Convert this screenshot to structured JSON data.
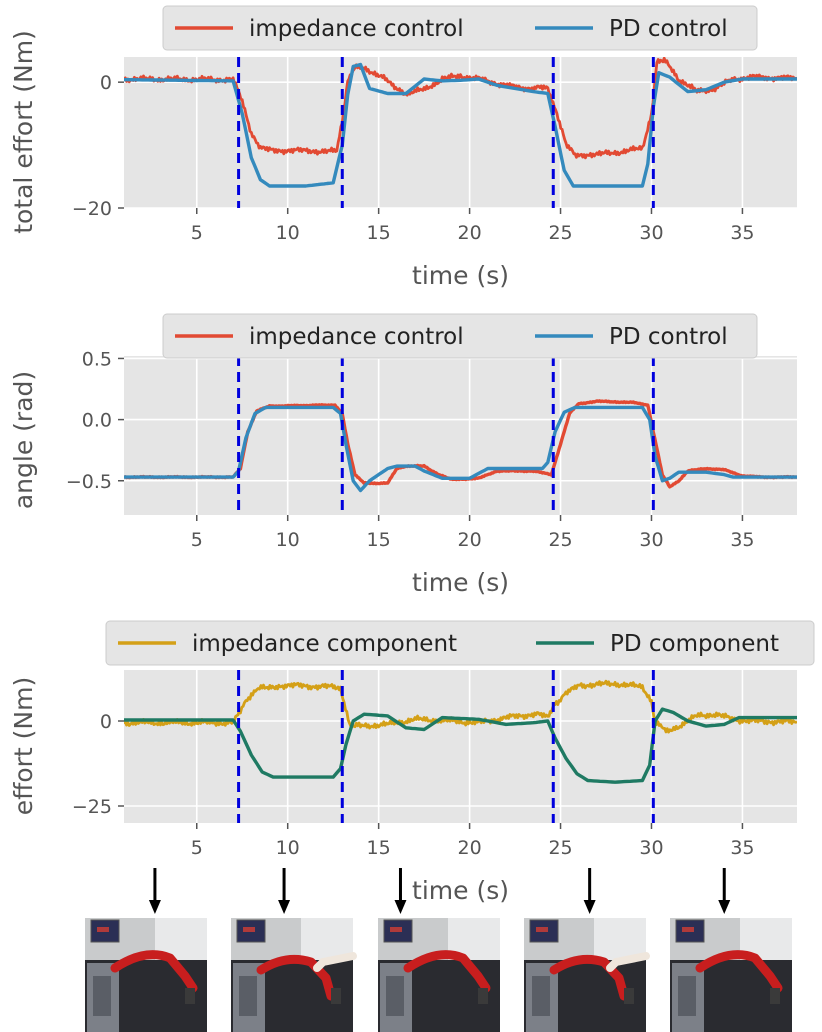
{
  "colors": {
    "impedance": "#E24A33",
    "pd": "#348ABD",
    "imp_component": "#D4A017",
    "pd_component": "#1F7A63",
    "event_line": "#0000DD",
    "plot_bg": "#E5E5E5",
    "grid": "#FFFFFF"
  },
  "events": [
    7.3,
    13.0,
    24.6,
    30.1
  ],
  "chart_data": [
    {
      "type": "line",
      "xlabel": "time (s)",
      "ylabel": "total effort (Nm)",
      "xlim": [
        1,
        38
      ],
      "ylim": [
        -20,
        4
      ],
      "xticks": [
        5,
        10,
        15,
        20,
        25,
        30,
        35
      ],
      "yticks": [
        0,
        -20
      ],
      "ytick_labels": [
        "0",
        "−20"
      ],
      "legend": "top-center",
      "series": [
        {
          "name": "impedance control",
          "color": "#E24A33",
          "points": [
            [
              1,
              0.5
            ],
            [
              7.0,
              0.4
            ],
            [
              7.5,
              -3
            ],
            [
              8.0,
              -8
            ],
            [
              8.5,
              -10.5
            ],
            [
              9,
              -10.8
            ],
            [
              12.7,
              -11
            ],
            [
              13.0,
              -6
            ],
            [
              13.3,
              0
            ],
            [
              13.7,
              2.5
            ],
            [
              14.5,
              1.8
            ],
            [
              15,
              1.2
            ],
            [
              15.8,
              -0.5
            ],
            [
              16.5,
              -1.8
            ],
            [
              17.5,
              -1.2
            ],
            [
              18.5,
              0.5
            ],
            [
              19.5,
              1
            ],
            [
              20.5,
              0.5
            ],
            [
              21.5,
              -0.2
            ],
            [
              22.5,
              -0.8
            ],
            [
              23.5,
              -1
            ],
            [
              24.3,
              -0.8
            ],
            [
              24.8,
              -5
            ],
            [
              25.3,
              -10
            ],
            [
              25.8,
              -11.5
            ],
            [
              27,
              -11.5
            ],
            [
              28.5,
              -11
            ],
            [
              29.5,
              -10.5
            ],
            [
              30.0,
              -5
            ],
            [
              30.3,
              3
            ],
            [
              30.7,
              3.5
            ],
            [
              31.5,
              0.5
            ],
            [
              32.5,
              -1.5
            ],
            [
              33.5,
              -1
            ],
            [
              34.5,
              0.5
            ],
            [
              35.5,
              0.8
            ],
            [
              38,
              0.6
            ]
          ]
        },
        {
          "name": "PD control",
          "color": "#348ABD",
          "points": [
            [
              1,
              0.4
            ],
            [
              7.0,
              0.2
            ],
            [
              7.5,
              -5
            ],
            [
              8.0,
              -12
            ],
            [
              8.5,
              -15.5
            ],
            [
              9,
              -16.5
            ],
            [
              11,
              -16.5
            ],
            [
              12.5,
              -16
            ],
            [
              13.0,
              -10
            ],
            [
              13.3,
              -2
            ],
            [
              13.6,
              2.5
            ],
            [
              14,
              2.8
            ],
            [
              14.5,
              -1
            ],
            [
              15.5,
              -1.8
            ],
            [
              16.5,
              -1.8
            ],
            [
              17.5,
              0.5
            ],
            [
              18.5,
              0.2
            ],
            [
              19.5,
              0.3
            ],
            [
              20.5,
              0.5
            ],
            [
              21.5,
              -0.5
            ],
            [
              22.5,
              -1
            ],
            [
              23.5,
              -1.5
            ],
            [
              24.3,
              -1.8
            ],
            [
              24.7,
              -7
            ],
            [
              25.2,
              -14
            ],
            [
              25.7,
              -16.5
            ],
            [
              27,
              -16.5
            ],
            [
              29.5,
              -16.5
            ],
            [
              29.8,
              -13
            ],
            [
              30.1,
              -4
            ],
            [
              30.4,
              1.5
            ],
            [
              31,
              0.8
            ],
            [
              32,
              -1.5
            ],
            [
              33,
              -1.2
            ],
            [
              34,
              0
            ],
            [
              35,
              0.5
            ],
            [
              38,
              0.5
            ]
          ]
        }
      ]
    },
    {
      "type": "line",
      "xlabel": "time (s)",
      "ylabel": "angle (rad)",
      "xlim": [
        1,
        38
      ],
      "ylim": [
        -0.78,
        0.52
      ],
      "xticks": [
        5,
        10,
        15,
        20,
        25,
        30,
        35
      ],
      "yticks": [
        0.5,
        0.0,
        -0.5
      ],
      "ytick_labels": [
        "0.5",
        "0.0",
        "−0.5"
      ],
      "legend": "top-center",
      "series": [
        {
          "name": "impedance control",
          "color": "#E24A33",
          "points": [
            [
              1,
              -0.47
            ],
            [
              7.0,
              -0.47
            ],
            [
              7.4,
              -0.4
            ],
            [
              7.8,
              -0.1
            ],
            [
              8.3,
              0.07
            ],
            [
              9,
              0.11
            ],
            [
              12.6,
              0.12
            ],
            [
              13.0,
              0.05
            ],
            [
              13.3,
              -0.2
            ],
            [
              13.7,
              -0.45
            ],
            [
              14.2,
              -0.52
            ],
            [
              15.5,
              -0.52
            ],
            [
              16,
              -0.4
            ],
            [
              16.5,
              -0.38
            ],
            [
              17.5,
              -0.38
            ],
            [
              18.3,
              -0.45
            ],
            [
              19,
              -0.49
            ],
            [
              20.5,
              -0.48
            ],
            [
              21.5,
              -0.42
            ],
            [
              23.5,
              -0.42
            ],
            [
              24.5,
              -0.45
            ],
            [
              25,
              -0.2
            ],
            [
              25.5,
              0.05
            ],
            [
              26,
              0.13
            ],
            [
              27,
              0.15
            ],
            [
              29,
              0.14
            ],
            [
              29.8,
              0.12
            ],
            [
              30.1,
              -0.1
            ],
            [
              30.6,
              -0.45
            ],
            [
              31,
              -0.55
            ],
            [
              31.5,
              -0.5
            ],
            [
              32,
              -0.42
            ],
            [
              33,
              -0.4
            ],
            [
              34,
              -0.41
            ],
            [
              35,
              -0.46
            ],
            [
              36,
              -0.47
            ],
            [
              38,
              -0.47
            ]
          ]
        },
        {
          "name": "PD control",
          "color": "#348ABD",
          "points": [
            [
              1,
              -0.47
            ],
            [
              7.0,
              -0.47
            ],
            [
              7.3,
              -0.42
            ],
            [
              7.7,
              -0.15
            ],
            [
              8.2,
              0.05
            ],
            [
              8.8,
              0.1
            ],
            [
              12.5,
              0.1
            ],
            [
              12.9,
              0.05
            ],
            [
              13.2,
              -0.2
            ],
            [
              13.6,
              -0.5
            ],
            [
              14,
              -0.58
            ],
            [
              14.5,
              -0.5
            ],
            [
              15.5,
              -0.4
            ],
            [
              16,
              -0.38
            ],
            [
              17,
              -0.38
            ],
            [
              17.5,
              -0.42
            ],
            [
              18.5,
              -0.48
            ],
            [
              20,
              -0.48
            ],
            [
              21,
              -0.4
            ],
            [
              23,
              -0.4
            ],
            [
              24,
              -0.4
            ],
            [
              24.3,
              -0.35
            ],
            [
              24.7,
              -0.1
            ],
            [
              25.2,
              0.06
            ],
            [
              25.8,
              0.1
            ],
            [
              29.5,
              0.1
            ],
            [
              29.9,
              0.0
            ],
            [
              30.2,
              -0.3
            ],
            [
              30.6,
              -0.5
            ],
            [
              31,
              -0.48
            ],
            [
              31.5,
              -0.43
            ],
            [
              33,
              -0.43
            ],
            [
              34,
              -0.45
            ],
            [
              34.5,
              -0.47
            ],
            [
              38,
              -0.47
            ]
          ]
        }
      ]
    },
    {
      "type": "line",
      "xlabel": "time (s)",
      "ylabel": "effort (Nm)",
      "xlim": [
        1,
        38
      ],
      "ylim": [
        -30,
        15
      ],
      "xticks": [
        5,
        10,
        15,
        20,
        25,
        30,
        35
      ],
      "yticks": [
        0,
        -25
      ],
      "ytick_labels": [
        "0",
        "−25"
      ],
      "legend": "top-center",
      "series": [
        {
          "name": "impedance component",
          "color": "#D4A017",
          "points": [
            [
              1,
              -0.5
            ],
            [
              7.0,
              -0.5
            ],
            [
              7.4,
              3
            ],
            [
              8,
              8
            ],
            [
              8.6,
              10
            ],
            [
              10,
              10.5
            ],
            [
              12.5,
              10
            ],
            [
              12.9,
              9
            ],
            [
              13.1,
              5
            ],
            [
              13.4,
              -1
            ],
            [
              14,
              -1.5
            ],
            [
              15.5,
              -1
            ],
            [
              17,
              0.5
            ],
            [
              19,
              0
            ],
            [
              20.5,
              -0.5
            ],
            [
              22,
              1
            ],
            [
              23.5,
              2
            ],
            [
              24.3,
              1.5
            ],
            [
              24.7,
              5
            ],
            [
              25.3,
              8
            ],
            [
              26,
              10.5
            ],
            [
              28,
              11
            ],
            [
              29.5,
              10
            ],
            [
              30.0,
              6
            ],
            [
              30.2,
              0
            ],
            [
              30.8,
              -3
            ],
            [
              31.5,
              -1.5
            ],
            [
              32.5,
              1.5
            ],
            [
              33.5,
              2
            ],
            [
              34.5,
              0.5
            ],
            [
              35.5,
              0
            ],
            [
              38,
              -0.3
            ]
          ]
        },
        {
          "name": "PD component",
          "color": "#1F7A63",
          "points": [
            [
              1,
              0.3
            ],
            [
              7.0,
              0.3
            ],
            [
              7.4,
              -3
            ],
            [
              8,
              -10
            ],
            [
              8.6,
              -15
            ],
            [
              9.2,
              -16.5
            ],
            [
              12.5,
              -16.5
            ],
            [
              12.9,
              -14
            ],
            [
              13.2,
              -7
            ],
            [
              13.6,
              0
            ],
            [
              14.2,
              2
            ],
            [
              15.5,
              1.5
            ],
            [
              16.5,
              -2
            ],
            [
              17.5,
              -2.5
            ],
            [
              18.5,
              1
            ],
            [
              20.5,
              0.5
            ],
            [
              22,
              -1
            ],
            [
              23.5,
              -0.5
            ],
            [
              24.3,
              0
            ],
            [
              24.7,
              -5
            ],
            [
              25.3,
              -11
            ],
            [
              25.9,
              -15.5
            ],
            [
              26.5,
              -17.5
            ],
            [
              28,
              -18
            ],
            [
              29.5,
              -17.5
            ],
            [
              29.9,
              -13
            ],
            [
              30.2,
              0
            ],
            [
              30.6,
              3.5
            ],
            [
              31.2,
              2.5
            ],
            [
              32,
              0
            ],
            [
              33,
              -1.5
            ],
            [
              34,
              -1
            ],
            [
              34.8,
              1
            ],
            [
              35.5,
              1
            ],
            [
              38,
              1
            ]
          ]
        }
      ]
    }
  ],
  "snapshots": {
    "x_times": [
      2.7,
      9.8,
      16.2,
      26.6,
      34.0
    ],
    "count": 5
  }
}
